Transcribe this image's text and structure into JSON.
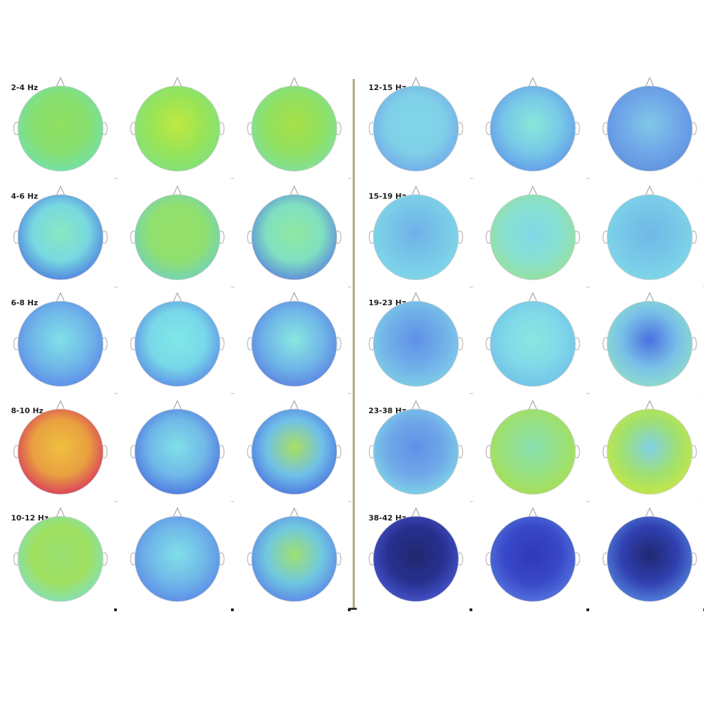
{
  "bands": [
    "2-4 Hz",
    "4-6 Hz",
    "6-8 Hz",
    "8-10 Hz",
    "10-12 Hz",
    "12-15 Hz",
    "15-19 Hz",
    "19-23 Hz",
    "23-38 Hz",
    "38-42 Hz"
  ]
}
